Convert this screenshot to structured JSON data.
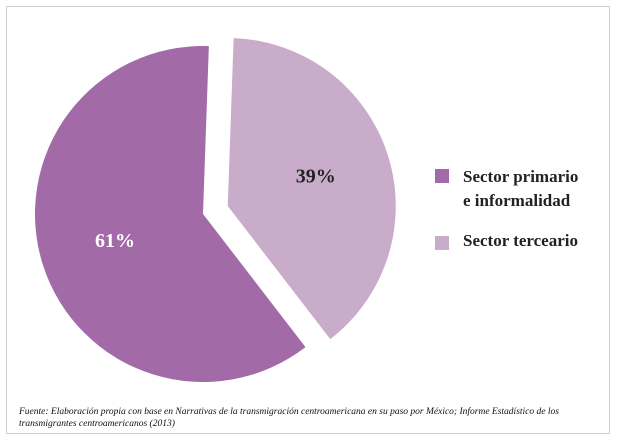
{
  "chart_data": {
    "type": "pie",
    "categories": [
      "Sector primario e informalidad",
      "Sector terceario"
    ],
    "values": [
      61,
      39
    ],
    "value_labels": [
      "61%",
      "39%"
    ],
    "legend": [
      "Sector primario\ne informalidad",
      "Sector terceario"
    ],
    "colors": [
      "#a36aa8",
      "#c9acc9"
    ],
    "label_colors": [
      "#ffffff",
      "#222222"
    ],
    "exploded": [
      false,
      true
    ],
    "legend_position": "right",
    "source_note": {
      "prefix": "Fuente:",
      "text": " Elaboración propia con base en Narrativas de la transmigración centroamericana en su paso por México; Informe Estadístico de los transmigrantes centroamericanos (2013)"
    }
  }
}
